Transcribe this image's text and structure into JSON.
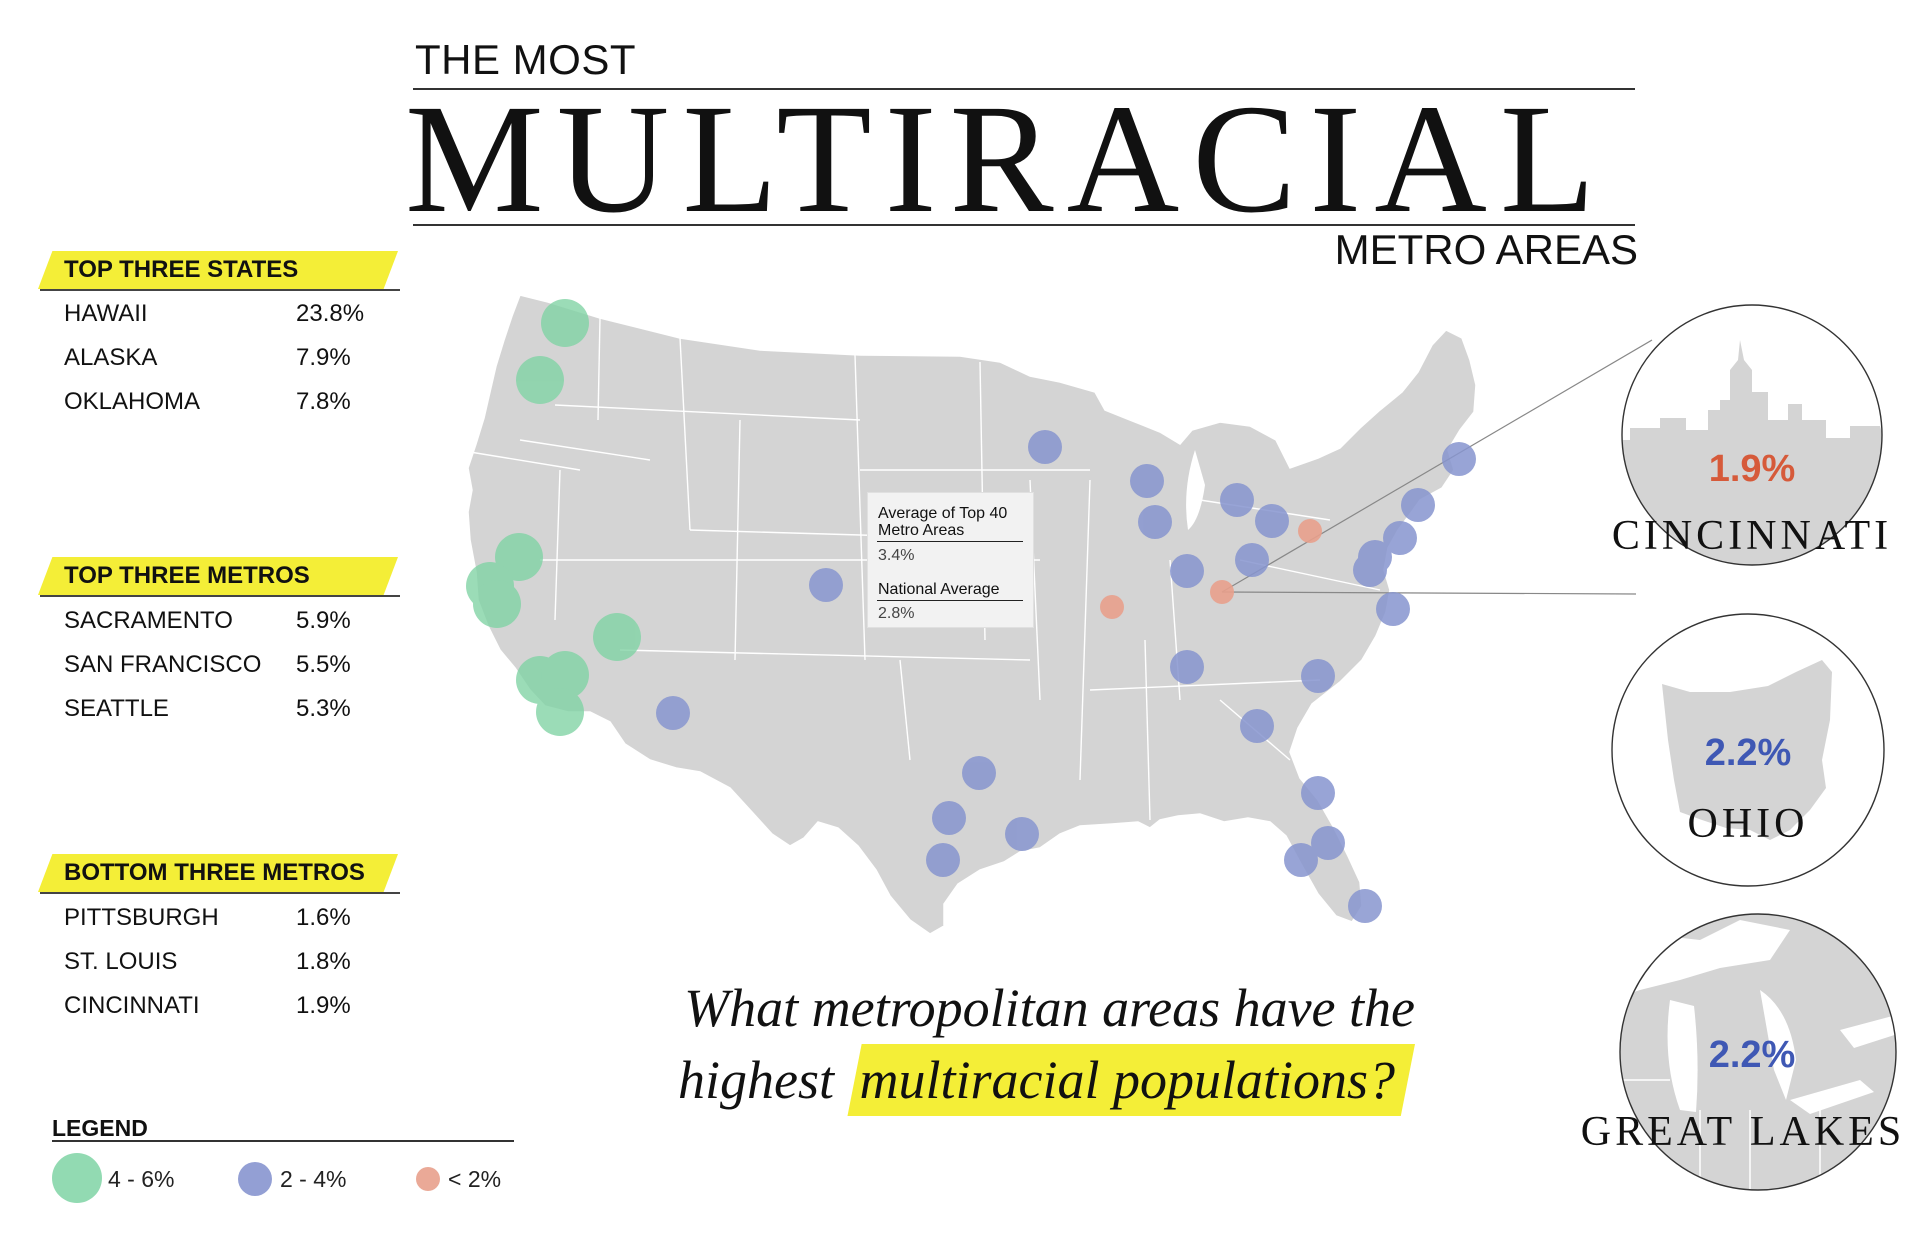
{
  "header": {
    "line1": "THE MOST",
    "line2": "MULTIRACIAL",
    "line3": "METRO AREAS"
  },
  "panels": {
    "states": {
      "title": "TOP THREE STATES",
      "rows": [
        {
          "name": "HAWAII",
          "value": "23.8%"
        },
        {
          "name": "ALASKA",
          "value": "7.9%"
        },
        {
          "name": "OKLAHOMA",
          "value": "7.8%"
        }
      ]
    },
    "top_metros": {
      "title": "TOP THREE METROS",
      "rows": [
        {
          "name": "SACRAMENTO",
          "value": "5.9%"
        },
        {
          "name": "SAN FRANCISCO",
          "value": "5.5%"
        },
        {
          "name": "SEATTLE",
          "value": "5.3%"
        }
      ]
    },
    "bottom_metros": {
      "title": "BOTTOM THREE METROS",
      "rows": [
        {
          "name": "PITTSBURGH",
          "value": "1.6%"
        },
        {
          "name": "ST. LOUIS",
          "value": "1.8%"
        },
        {
          "name": "CINCINNATI",
          "value": "1.9%"
        }
      ]
    }
  },
  "legend": {
    "title": "LEGEND",
    "items": [
      {
        "label": "4 - 6%",
        "color": "#7fd3a4"
      },
      {
        "label": "2 - 4%",
        "color": "#8795cf"
      },
      {
        "label": "< 2%",
        "color": "#e8a08c"
      }
    ]
  },
  "tooltip": {
    "avg_label_line1": "Average of Top 40",
    "avg_label_line2": "Metro Areas",
    "avg_value": "3.4%",
    "nat_label": "National Average",
    "nat_value": "2.8%"
  },
  "question": {
    "line1": "What metropolitan areas have the",
    "line2_plain": "highest",
    "line2_highlight": "multiracial populations?"
  },
  "insets": [
    {
      "value": "1.9%",
      "name": "CINCINNATI",
      "value_color": "#d65a3a"
    },
    {
      "value": "2.2%",
      "name": "OHIO",
      "value_color": "#3f58b4"
    },
    {
      "value": "2.2%",
      "name": "GREAT LAKES",
      "value_color": "#3f58b4"
    }
  ],
  "colors": {
    "green": "#7fd3a4",
    "blue": "#8795cf",
    "orange": "#e8a08c",
    "highlight": "#f4ee37",
    "land": "#d4d4d4"
  }
}
